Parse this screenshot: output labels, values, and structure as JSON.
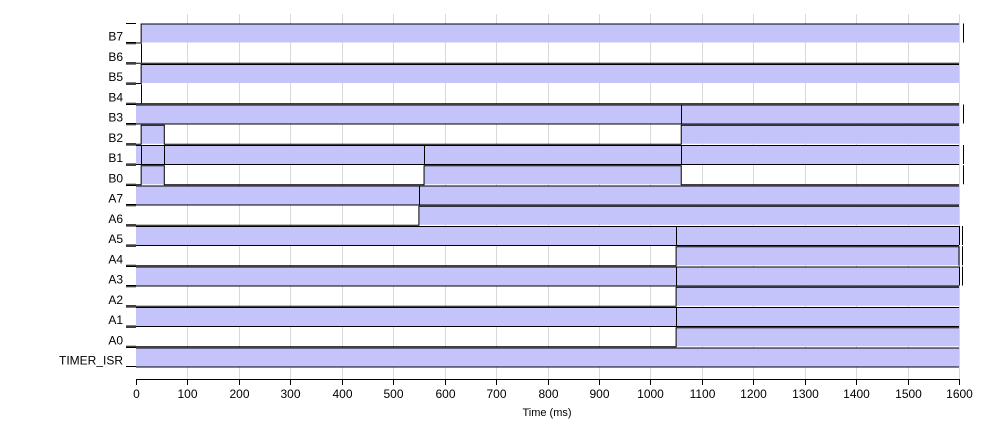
{
  "chart_data": {
    "type": "timing",
    "title": "",
    "xlabel": "Time (ms)",
    "ylabel": "",
    "xlim": [
      0,
      1600
    ],
    "xticks": [
      0,
      100,
      200,
      300,
      400,
      500,
      600,
      700,
      800,
      900,
      1000,
      1100,
      1200,
      1300,
      1400,
      1500,
      1600
    ],
    "grid": true,
    "high_fill_color": "#c4c4fb",
    "line_color": "#000000",
    "grid_color": "#d9d9d9",
    "signals": [
      {
        "name": "B7",
        "initial": 0,
        "transitions": [
          10
        ],
        "tail_x": 1608
      },
      {
        "name": "B6",
        "initial": 0,
        "transitions": [],
        "edge_marks": [
          10
        ]
      },
      {
        "name": "B5",
        "initial": 0,
        "transitions": [
          10
        ]
      },
      {
        "name": "B4",
        "initial": 0,
        "transitions": [],
        "edge_marks": [
          10
        ]
      },
      {
        "name": "B3",
        "initial": 1,
        "transitions": [],
        "edge_marks": [
          1060
        ],
        "tail_x": 1608
      },
      {
        "name": "B2",
        "initial": 0,
        "transitions": [
          10,
          55,
          1060
        ]
      },
      {
        "name": "B1",
        "initial": 1,
        "transitions": [],
        "edge_marks": [
          10,
          55,
          560,
          1060
        ],
        "tail_x": 1608
      },
      {
        "name": "B0",
        "initial": 0,
        "transitions": [
          10,
          55,
          560,
          1060
        ],
        "tail_x": 1608
      },
      {
        "name": "A7",
        "initial": 1,
        "transitions": [],
        "edge_marks": [
          550
        ]
      },
      {
        "name": "A6",
        "initial": 0,
        "transitions": [
          550
        ]
      },
      {
        "name": "A5",
        "initial": 1,
        "transitions": [],
        "edge_marks": [
          1050,
          1600
        ],
        "tail_x": 1605
      },
      {
        "name": "A4",
        "initial": 0,
        "transitions": [
          1050,
          1600
        ],
        "tail_x": 1605
      },
      {
        "name": "A3",
        "initial": 1,
        "transitions": [],
        "edge_marks": [
          1050,
          1600
        ],
        "tail_x": 1605
      },
      {
        "name": "A2",
        "initial": 0,
        "transitions": [
          1050
        ]
      },
      {
        "name": "A1",
        "initial": 1,
        "transitions": [],
        "edge_marks": [
          1050
        ]
      },
      {
        "name": "A0",
        "initial": 0,
        "transitions": [
          1050
        ]
      },
      {
        "name": "TIMER_ISR",
        "initial": 1,
        "transitions": []
      }
    ]
  }
}
